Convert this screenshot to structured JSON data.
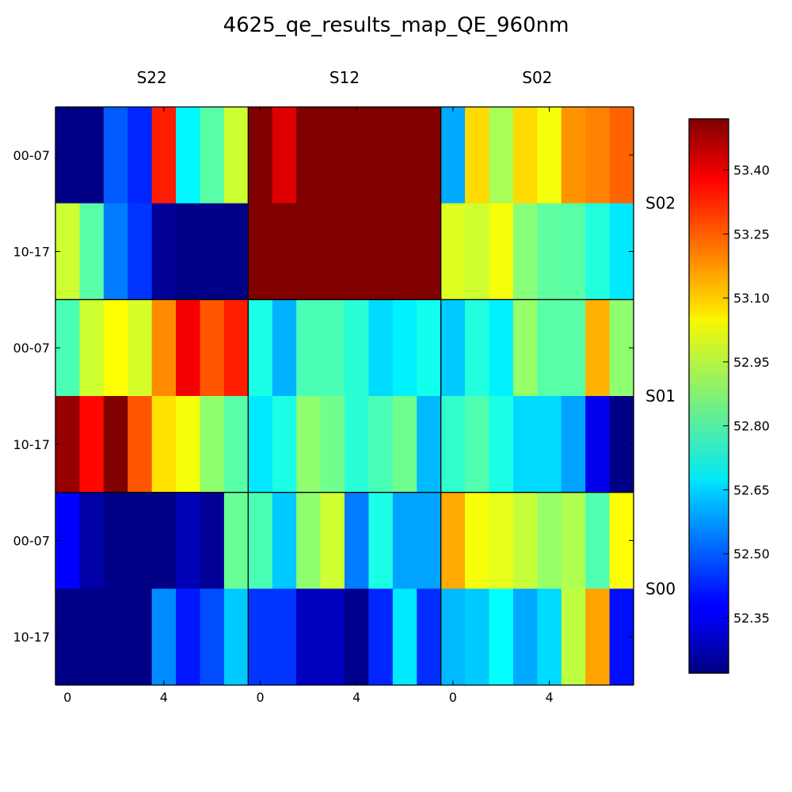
{
  "chart_data": {
    "type": "heatmap",
    "title": "4625_qe_results_map_QE_960nm",
    "col_groups": [
      "S22",
      "S12",
      "S02"
    ],
    "row_groups": [
      "S02",
      "S01",
      "S00"
    ],
    "row_labels": [
      "00-07",
      "10-17",
      "00-07",
      "10-17",
      "00-07",
      "10-17"
    ],
    "x_tick_labels": [
      "0",
      "4"
    ],
    "x_ticks": [
      0,
      4
    ],
    "columns_per_group": 8,
    "colorbar": {
      "colormap": "jet",
      "range": [
        52.22,
        53.52
      ],
      "ticks": [
        52.35,
        52.5,
        52.65,
        52.8,
        52.95,
        53.1,
        53.25,
        53.4
      ],
      "tick_labels": [
        "52.35",
        "52.50",
        "52.65",
        "52.80",
        "52.95",
        "53.10",
        "53.25",
        "53.40"
      ]
    },
    "values": [
      [
        52.23,
        52.23,
        52.5,
        52.43,
        53.32,
        52.7,
        52.82,
        52.97,
        53.55,
        53.4,
        53.55,
        53.55,
        53.55,
        53.55,
        53.55,
        53.55,
        52.6,
        53.08,
        52.92,
        53.08,
        53.02,
        53.17,
        53.19,
        53.23
      ],
      [
        52.97,
        52.82,
        52.54,
        52.45,
        52.25,
        52.23,
        52.23,
        52.23,
        53.55,
        53.55,
        53.55,
        53.55,
        53.55,
        53.55,
        53.55,
        53.55,
        52.99,
        52.97,
        53.02,
        52.88,
        52.83,
        52.82,
        52.75,
        52.68
      ],
      [
        52.8,
        52.97,
        53.03,
        52.98,
        53.18,
        53.37,
        53.25,
        53.32,
        52.74,
        52.61,
        52.8,
        52.8,
        52.76,
        52.66,
        52.69,
        52.73,
        52.64,
        52.75,
        52.69,
        52.9,
        52.82,
        52.82,
        53.13,
        52.89
      ],
      [
        53.49,
        53.35,
        53.56,
        53.25,
        53.07,
        53.02,
        52.89,
        52.82,
        52.68,
        52.74,
        52.89,
        52.85,
        52.76,
        52.8,
        52.85,
        52.62,
        52.77,
        52.81,
        52.74,
        52.66,
        52.66,
        52.59,
        52.36,
        52.23
      ],
      [
        52.38,
        52.27,
        52.23,
        52.23,
        52.23,
        52.29,
        52.25,
        52.84,
        52.8,
        52.64,
        52.89,
        52.97,
        52.54,
        52.74,
        52.59,
        52.59,
        53.14,
        53.02,
        53.0,
        52.96,
        52.9,
        52.93,
        52.81,
        53.03
      ],
      [
        52.23,
        52.23,
        52.23,
        52.23,
        52.56,
        52.41,
        52.48,
        52.64,
        52.45,
        52.45,
        52.3,
        52.3,
        52.24,
        52.43,
        52.68,
        52.44,
        52.62,
        52.64,
        52.71,
        52.6,
        52.66,
        52.95,
        53.15,
        52.4
      ]
    ]
  }
}
